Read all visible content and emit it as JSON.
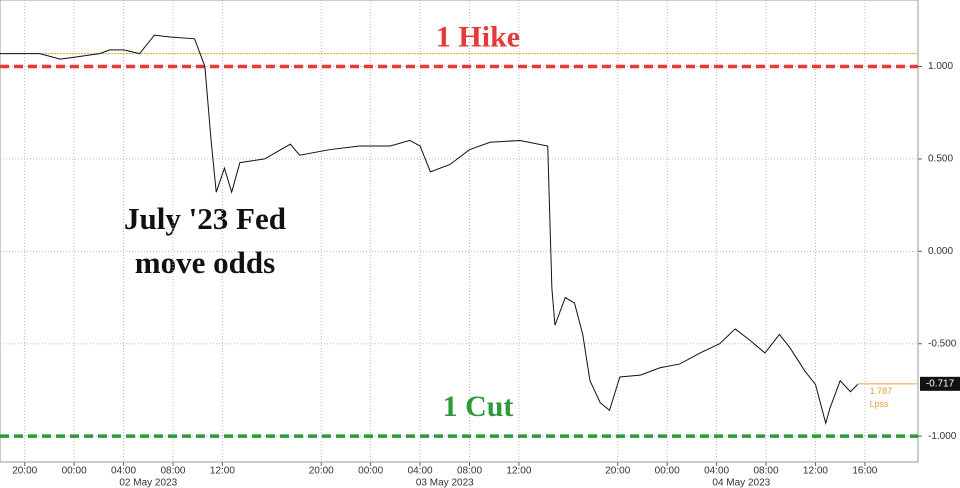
{
  "chart_data": {
    "type": "line",
    "annotations": [
      "July '23 Fed",
      "move odds"
    ],
    "series": [
      {
        "color": "#111111",
        "x": [
          "2023-05-01T18:00",
          "2023-05-01T21:14",
          "2023-05-01T22:52",
          "2023-05-02T00:00",
          "2023-05-02T02:04",
          "2023-05-02T02:53",
          "2023-05-02T04:00",
          "2023-05-02T05:18",
          "2023-05-02T06:30",
          "2023-05-02T07:45",
          "2023-05-02T09:45",
          "2023-05-02T10:35",
          "2023-05-02T11:05",
          "2023-05-02T11:30",
          "2023-05-02T12:10",
          "2023-05-02T12:45",
          "2023-05-02T13:25",
          "2023-05-02T15:25",
          "2023-05-02T17:30",
          "2023-05-02T18:15",
          "2023-05-02T20:40",
          "2023-05-02T23:05",
          "2023-05-03T01:35",
          "2023-05-03T03:10",
          "2023-05-03T04:00",
          "2023-05-03T04:50",
          "2023-05-03T06:25",
          "2023-05-03T08:00",
          "2023-05-03T09:40",
          "2023-05-03T12:05",
          "2023-05-03T14:20",
          "2023-05-03T14:40",
          "2023-05-03T14:55",
          "2023-05-03T15:45",
          "2023-05-03T16:30",
          "2023-05-03T17:10",
          "2023-05-03T17:45",
          "2023-05-03T18:35",
          "2023-05-03T19:20",
          "2023-05-03T20:10",
          "2023-05-03T21:50",
          "2023-05-03T23:25",
          "2023-05-04T01:00",
          "2023-05-04T02:40",
          "2023-05-04T04:15",
          "2023-05-04T05:30",
          "2023-05-04T06:40",
          "2023-05-04T07:55",
          "2023-05-04T09:05",
          "2023-05-04T09:55",
          "2023-05-04T11:10",
          "2023-05-04T12:00",
          "2023-05-04T12:50",
          "2023-05-04T13:10",
          "2023-05-04T14:00",
          "2023-05-04T14:50",
          "2023-05-04T15:25"
        ],
        "values": [
          1.07,
          1.07,
          1.04,
          1.05,
          1.07,
          1.09,
          1.09,
          1.07,
          1.17,
          1.16,
          1.15,
          1.0,
          0.6,
          0.32,
          0.45,
          0.32,
          0.48,
          0.5,
          0.58,
          0.52,
          0.55,
          0.57,
          0.57,
          0.6,
          0.57,
          0.43,
          0.47,
          0.55,
          0.59,
          0.6,
          0.57,
          -0.2,
          -0.4,
          -0.25,
          -0.28,
          -0.45,
          -0.7,
          -0.82,
          -0.86,
          -0.68,
          -0.67,
          -0.63,
          -0.61,
          -0.55,
          -0.5,
          -0.42,
          -0.48,
          -0.55,
          -0.45,
          -0.52,
          -0.65,
          -0.72,
          -0.93,
          -0.85,
          -0.7,
          -0.76,
          -0.72
        ]
      }
    ],
    "lines": [
      {
        "name": "1 Hike",
        "value": 1,
        "color": "#e8393a"
      },
      {
        "name": "1 Cut",
        "value": -1,
        "color": "#2c9a3a"
      }
    ],
    "reference_line": {
      "value": 1.07,
      "color": "#f0a030"
    },
    "last_value": -0.717,
    "last_notes": [
      "1.787",
      "Lpss"
    ],
    "xlim": [
      "2023-05-01T18:00",
      "2023-05-04T20:18"
    ],
    "xticks": [
      {
        "value": "2023-05-01T20:00",
        "label": "20:00"
      },
      {
        "value": "2023-05-02T00:00",
        "label": "00:00"
      },
      {
        "value": "2023-05-02T04:00",
        "label": "04:00"
      },
      {
        "value": "2023-05-02T08:00",
        "label": "08:00"
      },
      {
        "value": "2023-05-02T12:00",
        "label": "12:00"
      },
      {
        "value": "2023-05-02T20:00",
        "label": "20:00"
      },
      {
        "value": "2023-05-03T00:00",
        "label": "00:00"
      },
      {
        "value": "2023-05-03T04:00",
        "label": "04:00"
      },
      {
        "value": "2023-05-03T08:00",
        "label": "08:00"
      },
      {
        "value": "2023-05-03T12:00",
        "label": "12:00"
      },
      {
        "value": "2023-05-03T20:00",
        "label": "20:00"
      },
      {
        "value": "2023-05-04T00:00",
        "label": "00:00"
      },
      {
        "value": "2023-05-04T04:00",
        "label": "04:00"
      },
      {
        "value": "2023-05-04T08:00",
        "label": "08:00"
      },
      {
        "value": "2023-05-04T12:00",
        "label": "12:00"
      },
      {
        "value": "2023-05-04T16:00",
        "label": "16:00"
      }
    ],
    "xdates": [
      {
        "value": "2023-05-02T06:00",
        "label": "02 May 2023"
      },
      {
        "value": "2023-05-03T06:00",
        "label": "03 May 2023"
      },
      {
        "value": "2023-05-04T06:00",
        "label": "04 May 2023"
      }
    ],
    "ylim": [
      -1.14,
      1.36
    ],
    "yticks": [
      {
        "value": 1,
        "label": "1.000"
      },
      {
        "value": 0.5,
        "label": "0.500"
      },
      {
        "value": 0,
        "label": "0.000"
      },
      {
        "value": -0.5,
        "label": "-0.500"
      },
      {
        "value": -1,
        "label": "-1.000"
      }
    ],
    "grid": true
  }
}
